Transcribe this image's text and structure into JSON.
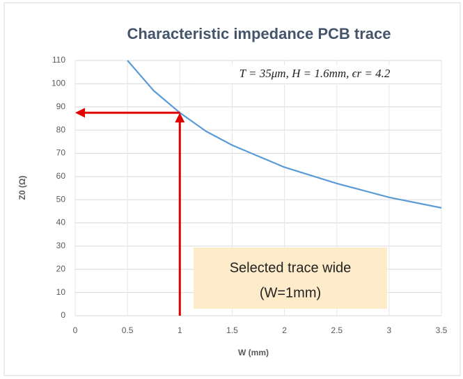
{
  "chart_data": {
    "type": "line",
    "title": "Characteristic impedance PCB trace",
    "xlabel": "W (mm)",
    "ylabel": "Z0 (Ω)",
    "x": [
      0.5,
      0.75,
      1,
      1.25,
      1.5,
      2,
      2.5,
      3,
      3.5
    ],
    "series": [
      {
        "name": "Z0",
        "color": "#5b9bd5",
        "values": [
          110,
          97,
          87.5,
          79.5,
          73.5,
          64,
          57,
          51,
          46.5
        ]
      }
    ],
    "xlim": [
      0,
      3.5
    ],
    "xticks": [
      0,
      0.5,
      1,
      1.5,
      2,
      2.5,
      3,
      3.5
    ],
    "ylim": [
      0,
      110
    ],
    "yticks": [
      0,
      10,
      20,
      30,
      40,
      50,
      60,
      70,
      80,
      90,
      100,
      110
    ],
    "grid": true,
    "highlight": {
      "x": 1,
      "y": 87.5,
      "color": "#e00000"
    },
    "annotations": {
      "params": "T = 35μm, H = 1.6mm, ϵr = 4.2",
      "note": [
        "Selected trace wide",
        "(W=1mm)"
      ]
    }
  }
}
